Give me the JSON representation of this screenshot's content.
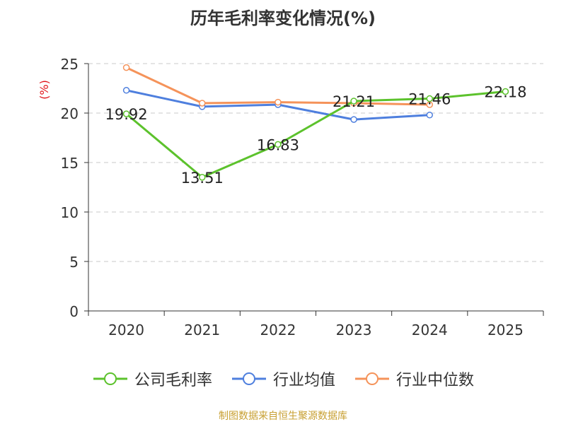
{
  "chart_data": {
    "type": "line",
    "title": "历年毛利率变化情况(%)",
    "ylabel": "(%)",
    "xlabel": "",
    "categories": [
      "2020",
      "2021",
      "2022",
      "2023",
      "2024",
      "2025"
    ],
    "ylim": [
      0,
      25
    ],
    "yticks": [
      0,
      5,
      10,
      15,
      20,
      25
    ],
    "grid": true,
    "legend_position": "bottom",
    "series": [
      {
        "name": "公司毛利率",
        "color": "#5cc22c",
        "values": [
          19.92,
          13.51,
          16.83,
          21.21,
          21.46,
          22.18
        ],
        "labels": [
          "19.92",
          "13.51",
          "16.83",
          "21.21",
          "21.46",
          "22.18"
        ]
      },
      {
        "name": "行业均值",
        "color": "#4e7fde",
        "values": [
          22.3,
          20.65,
          20.85,
          19.35,
          19.8,
          null
        ]
      },
      {
        "name": "行业中位数",
        "color": "#f5935a",
        "values": [
          24.6,
          21.0,
          21.1,
          21.0,
          20.85,
          null
        ]
      }
    ]
  },
  "source": "制图数据来自恒生聚源数据库"
}
